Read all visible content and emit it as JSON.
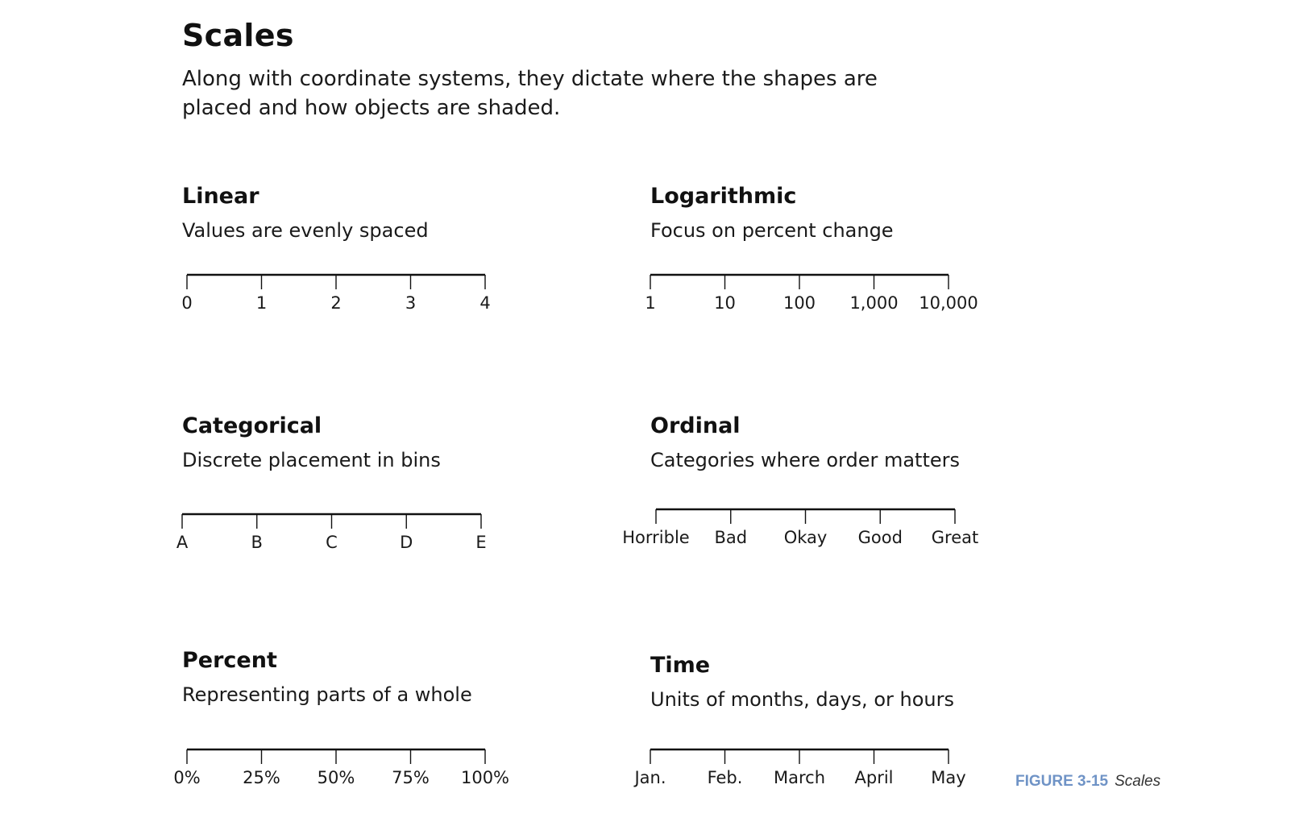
{
  "header": {
    "title": "Scales",
    "subtitle_line1": "Along with coordinate systems, they dictate where the shapes are",
    "subtitle_line2": "placed and how objects are shaded."
  },
  "panels": [
    {
      "id": "linear",
      "title": "Linear",
      "description": "Values are evenly spaced",
      "ticks": [
        "0",
        "1",
        "2",
        "3",
        "4"
      ]
    },
    {
      "id": "logarithmic",
      "title": "Logarithmic",
      "description": "Focus on percent change",
      "ticks": [
        "1",
        "10",
        "100",
        "1,000",
        "10,000"
      ]
    },
    {
      "id": "categorical",
      "title": "Categorical",
      "description": "Discrete placement in bins",
      "ticks": [
        "A",
        "B",
        "C",
        "D",
        "E"
      ]
    },
    {
      "id": "ordinal",
      "title": "Ordinal",
      "description": "Categories where order matters",
      "ticks": [
        "Horrible",
        "Bad",
        "Okay",
        "Good",
        "Great"
      ]
    },
    {
      "id": "percent",
      "title": "Percent",
      "description": "Representing parts of a whole",
      "ticks": [
        "0%",
        "25%",
        "50%",
        "75%",
        "100%"
      ]
    },
    {
      "id": "time",
      "title": "Time",
      "description": "Units of months, days, or hours",
      "ticks": [
        "Jan.",
        "Feb.",
        "March",
        "April",
        "May"
      ]
    }
  ],
  "caption": {
    "label": "FIGURE 3-15",
    "text": "Scales",
    "label_color": "#6f93c6"
  }
}
